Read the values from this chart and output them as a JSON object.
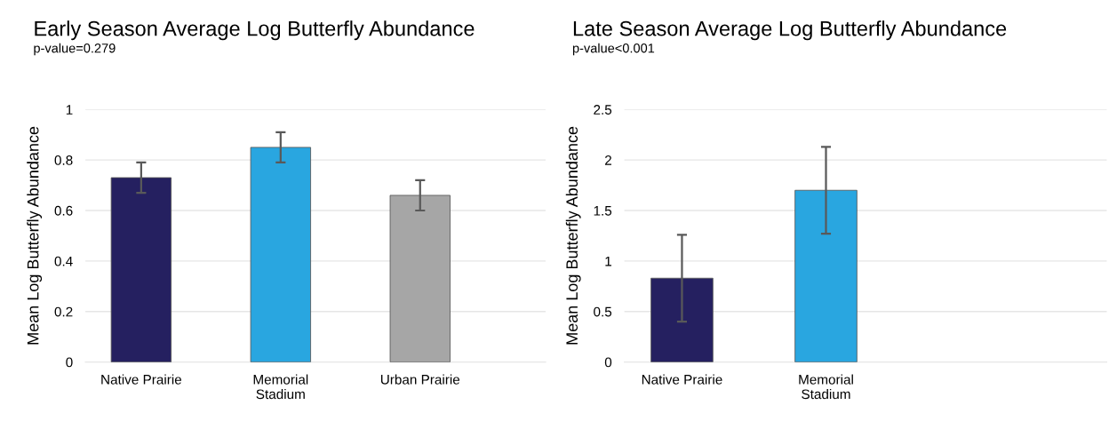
{
  "chart_data": [
    {
      "type": "bar",
      "title": "Early Season Average Log Butterfly Abundance",
      "subtitle": "p-value=0.279",
      "ylabel": "Mean Log Butterfly Abundance",
      "categories": [
        "Native Prairie",
        "Memorial\nStadium",
        "Urban Prairie"
      ],
      "values": [
        0.73,
        0.85,
        0.66
      ],
      "errors": [
        0.06,
        0.06,
        0.06
      ],
      "colors": [
        "#252060",
        "#29a6e0",
        "#a6a6a6"
      ],
      "ylim": [
        0,
        1
      ],
      "yticks": [
        0,
        0.2,
        0.4,
        0.6,
        0.8,
        1
      ],
      "grid": "y"
    },
    {
      "type": "bar",
      "title": "Late Season Average Log Butterfly Abundance",
      "subtitle": "p-value<0.001",
      "ylabel": "Mean Log Butterfly Abundance",
      "categories": [
        "Native Prairie",
        "Memorial\nStadium"
      ],
      "values": [
        0.83,
        1.7
      ],
      "errors": [
        0.43,
        0.43
      ],
      "colors": [
        "#252060",
        "#29a6e0"
      ],
      "ylim": [
        0,
        2.5
      ],
      "yticks": [
        0,
        0.5,
        1,
        1.5,
        2,
        2.5
      ],
      "grid": "y"
    }
  ]
}
